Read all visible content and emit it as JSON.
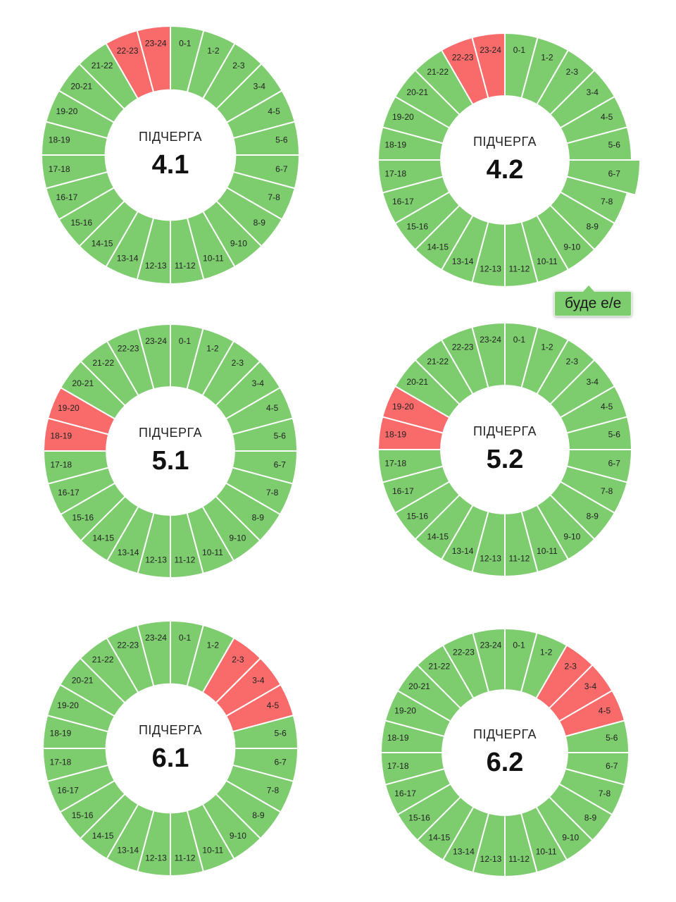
{
  "colors": {
    "on": "#7dcc6e",
    "off": "#f96b6b",
    "separator": "#ffffff"
  },
  "chart_data": [
    {
      "type": "pie",
      "variant": "donut",
      "caption": "ПІДЧЕРГА",
      "title": "4.1",
      "categories": [
        "0-1",
        "1-2",
        "2-3",
        "3-4",
        "4-5",
        "5-6",
        "6-7",
        "7-8",
        "8-9",
        "9-10",
        "10-11",
        "11-12",
        "12-13",
        "13-14",
        "14-15",
        "15-16",
        "16-17",
        "17-18",
        "18-19",
        "19-20",
        "20-21",
        "21-22",
        "22-23",
        "23-24"
      ],
      "off_hours": [
        "22-23",
        "23-24"
      ]
    },
    {
      "type": "pie",
      "variant": "donut",
      "caption": "ПІДЧЕРГА",
      "title": "4.2",
      "categories": [
        "0-1",
        "1-2",
        "2-3",
        "3-4",
        "4-5",
        "5-6",
        "6-7",
        "7-8",
        "8-9",
        "9-10",
        "10-11",
        "11-12",
        "12-13",
        "13-14",
        "14-15",
        "15-16",
        "16-17",
        "17-18",
        "18-19",
        "19-20",
        "20-21",
        "21-22",
        "22-23",
        "23-24"
      ],
      "off_hours": [
        "22-23",
        "23-24"
      ],
      "hovered": "6-7",
      "tooltip": "буде е/е"
    },
    {
      "type": "pie",
      "variant": "donut",
      "caption": "ПІДЧЕРГА",
      "title": "5.1",
      "categories": [
        "0-1",
        "1-2",
        "2-3",
        "3-4",
        "4-5",
        "5-6",
        "6-7",
        "7-8",
        "8-9",
        "9-10",
        "10-11",
        "11-12",
        "12-13",
        "13-14",
        "14-15",
        "15-16",
        "16-17",
        "17-18",
        "18-19",
        "19-20",
        "20-21",
        "21-22",
        "22-23",
        "23-24"
      ],
      "off_hours": [
        "18-19",
        "19-20"
      ]
    },
    {
      "type": "pie",
      "variant": "donut",
      "caption": "ПІДЧЕРГА",
      "title": "5.2",
      "categories": [
        "0-1",
        "1-2",
        "2-3",
        "3-4",
        "4-5",
        "5-6",
        "6-7",
        "7-8",
        "8-9",
        "9-10",
        "10-11",
        "11-12",
        "12-13",
        "13-14",
        "14-15",
        "15-16",
        "16-17",
        "17-18",
        "18-19",
        "19-20",
        "20-21",
        "21-22",
        "22-23",
        "23-24"
      ],
      "off_hours": [
        "18-19",
        "19-20"
      ]
    },
    {
      "type": "pie",
      "variant": "donut",
      "caption": "ПІДЧЕРГА",
      "title": "6.1",
      "categories": [
        "0-1",
        "1-2",
        "2-3",
        "3-4",
        "4-5",
        "5-6",
        "6-7",
        "7-8",
        "8-9",
        "9-10",
        "10-11",
        "11-12",
        "12-13",
        "13-14",
        "14-15",
        "15-16",
        "16-17",
        "17-18",
        "18-19",
        "19-20",
        "20-21",
        "21-22",
        "22-23",
        "23-24"
      ],
      "off_hours": [
        "2-3",
        "3-4",
        "4-5"
      ]
    },
    {
      "type": "pie",
      "variant": "donut",
      "caption": "ПІДЧЕРГА",
      "title": "6.2",
      "categories": [
        "0-1",
        "1-2",
        "2-3",
        "3-4",
        "4-5",
        "5-6",
        "6-7",
        "7-8",
        "8-9",
        "9-10",
        "10-11",
        "11-12",
        "12-13",
        "13-14",
        "14-15",
        "15-16",
        "16-17",
        "17-18",
        "18-19",
        "19-20",
        "20-21",
        "21-22",
        "22-23",
        "23-24"
      ],
      "off_hours": [
        "2-3",
        "3-4",
        "4-5"
      ]
    }
  ]
}
